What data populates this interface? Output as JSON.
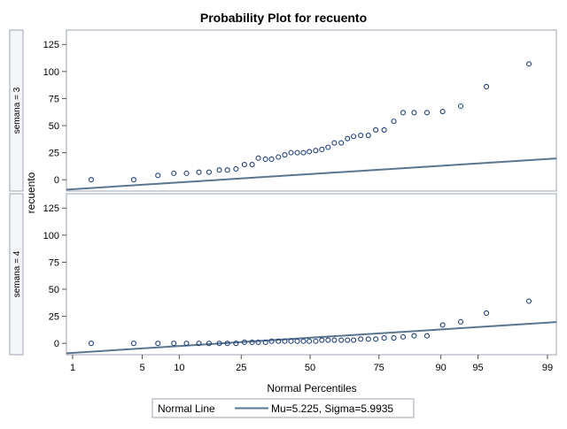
{
  "chart_data": {
    "type": "scatter",
    "title": "Probability Plot for recuento",
    "xlabel": "Normal Percentiles",
    "ylabel": "recuento",
    "x_scale": "normal-probability",
    "x_ticks": [
      1,
      5,
      10,
      25,
      50,
      75,
      90,
      95,
      99
    ],
    "ylim": [
      -8,
      135
    ],
    "y_ticks": [
      0,
      25,
      50,
      75,
      100,
      125
    ],
    "grid": false,
    "legend_position": "bottom",
    "reference_line": {
      "name": "Normal Line",
      "mu": 5.225,
      "sigma": 5.9935
    },
    "legend": {
      "title": "Normal Line",
      "entry": "Mu=5.225, Sigma=5.9935"
    },
    "colors": {
      "marker": "#1f3f7a",
      "line": "#5a7590",
      "panel_border": "#9aa4b0",
      "strip_bg": "#f5f6fa"
    },
    "panels": [
      {
        "label": "semana = 3",
        "points": [
          {
            "p": 1.6,
            "y": 0
          },
          {
            "p": 4.2,
            "y": 0
          },
          {
            "p": 6.8,
            "y": 4
          },
          {
            "p": 9.1,
            "y": 6
          },
          {
            "p": 11.3,
            "y": 6
          },
          {
            "p": 13.8,
            "y": 7
          },
          {
            "p": 16.1,
            "y": 7
          },
          {
            "p": 18.7,
            "y": 9
          },
          {
            "p": 20.9,
            "y": 9
          },
          {
            "p": 23.4,
            "y": 10
          },
          {
            "p": 26.0,
            "y": 14
          },
          {
            "p": 28.5,
            "y": 14
          },
          {
            "p": 30.6,
            "y": 20
          },
          {
            "p": 33.1,
            "y": 19
          },
          {
            "p": 35.3,
            "y": 19
          },
          {
            "p": 37.8,
            "y": 21
          },
          {
            "p": 40.2,
            "y": 23
          },
          {
            "p": 42.6,
            "y": 25
          },
          {
            "p": 45.0,
            "y": 25
          },
          {
            "p": 47.4,
            "y": 25
          },
          {
            "p": 49.7,
            "y": 26
          },
          {
            "p": 52.2,
            "y": 27
          },
          {
            "p": 54.6,
            "y": 28
          },
          {
            "p": 57.0,
            "y": 30
          },
          {
            "p": 59.4,
            "y": 34
          },
          {
            "p": 62.0,
            "y": 34
          },
          {
            "p": 64.3,
            "y": 38
          },
          {
            "p": 66.5,
            "y": 40
          },
          {
            "p": 69.0,
            "y": 41
          },
          {
            "p": 71.6,
            "y": 41
          },
          {
            "p": 74.0,
            "y": 46
          },
          {
            "p": 76.6,
            "y": 46
          },
          {
            "p": 79.4,
            "y": 54
          },
          {
            "p": 81.9,
            "y": 62
          },
          {
            "p": 84.6,
            "y": 62
          },
          {
            "p": 87.4,
            "y": 62
          },
          {
            "p": 90.3,
            "y": 63
          },
          {
            "p": 93.0,
            "y": 68
          },
          {
            "p": 95.8,
            "y": 86
          },
          {
            "p": 98.4,
            "y": 107
          }
        ]
      },
      {
        "label": "semana = 4",
        "points": [
          {
            "p": 1.6,
            "y": 0
          },
          {
            "p": 4.2,
            "y": 0
          },
          {
            "p": 6.8,
            "y": 0
          },
          {
            "p": 9.1,
            "y": 0
          },
          {
            "p": 11.3,
            "y": 0
          },
          {
            "p": 13.8,
            "y": 0
          },
          {
            "p": 16.1,
            "y": 0
          },
          {
            "p": 18.7,
            "y": 0
          },
          {
            "p": 20.9,
            "y": 0
          },
          {
            "p": 23.4,
            "y": 0
          },
          {
            "p": 26.0,
            "y": 1
          },
          {
            "p": 28.5,
            "y": 1
          },
          {
            "p": 30.6,
            "y": 1
          },
          {
            "p": 33.1,
            "y": 1
          },
          {
            "p": 35.3,
            "y": 2
          },
          {
            "p": 37.8,
            "y": 2
          },
          {
            "p": 40.2,
            "y": 2
          },
          {
            "p": 42.6,
            "y": 2
          },
          {
            "p": 45.0,
            "y": 2
          },
          {
            "p": 47.4,
            "y": 2
          },
          {
            "p": 49.7,
            "y": 2
          },
          {
            "p": 52.2,
            "y": 2
          },
          {
            "p": 54.6,
            "y": 3
          },
          {
            "p": 57.0,
            "y": 3
          },
          {
            "p": 59.4,
            "y": 3
          },
          {
            "p": 62.0,
            "y": 3
          },
          {
            "p": 64.3,
            "y": 3
          },
          {
            "p": 66.5,
            "y": 3
          },
          {
            "p": 69.0,
            "y": 4
          },
          {
            "p": 71.6,
            "y": 4
          },
          {
            "p": 74.0,
            "y": 4
          },
          {
            "p": 76.6,
            "y": 5
          },
          {
            "p": 79.4,
            "y": 5
          },
          {
            "p": 81.9,
            "y": 6
          },
          {
            "p": 84.6,
            "y": 7
          },
          {
            "p": 87.4,
            "y": 7
          },
          {
            "p": 90.3,
            "y": 17
          },
          {
            "p": 93.0,
            "y": 20
          },
          {
            "p": 95.8,
            "y": 28
          },
          {
            "p": 98.4,
            "y": 39
          }
        ]
      }
    ]
  }
}
